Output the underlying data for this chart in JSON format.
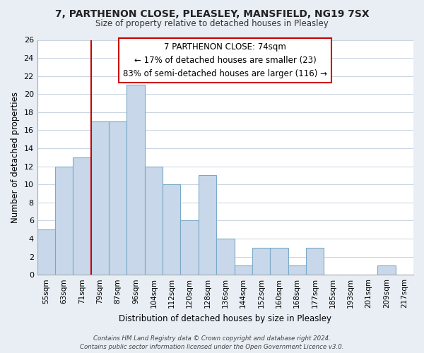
{
  "title": "7, PARTHENON CLOSE, PLEASLEY, MANSFIELD, NG19 7SX",
  "subtitle": "Size of property relative to detached houses in Pleasley",
  "xlabel": "Distribution of detached houses by size in Pleasley",
  "ylabel": "Number of detached properties",
  "bin_labels": [
    "55sqm",
    "63sqm",
    "71sqm",
    "79sqm",
    "87sqm",
    "96sqm",
    "104sqm",
    "112sqm",
    "120sqm",
    "128sqm",
    "136sqm",
    "144sqm",
    "152sqm",
    "160sqm",
    "168sqm",
    "177sqm",
    "185sqm",
    "193sqm",
    "201sqm",
    "209sqm",
    "217sqm"
  ],
  "bar_heights": [
    5,
    12,
    13,
    17,
    17,
    21,
    12,
    10,
    6,
    11,
    4,
    1,
    3,
    3,
    1,
    3,
    0,
    0,
    0,
    1,
    0
  ],
  "bar_color": "#c8d8ea",
  "bar_edge_color": "#7aaac8",
  "ylim": [
    0,
    26
  ],
  "yticks": [
    0,
    2,
    4,
    6,
    8,
    10,
    12,
    14,
    16,
    18,
    20,
    22,
    24,
    26
  ],
  "property_line_color": "#cc0000",
  "annotation_title": "7 PARTHENON CLOSE: 74sqm",
  "annotation_line1": "← 17% of detached houses are smaller (23)",
  "annotation_line2": "83% of semi-detached houses are larger (116) →",
  "annotation_box_color": "#ffffff",
  "annotation_box_edge_color": "#cc0000",
  "footer_line1": "Contains HM Land Registry data © Crown copyright and database right 2024.",
  "footer_line2": "Contains public sector information licensed under the Open Government Licence v3.0.",
  "background_color": "#e8eef4",
  "plot_background_color": "#ffffff",
  "grid_color": "#c8d4e0"
}
